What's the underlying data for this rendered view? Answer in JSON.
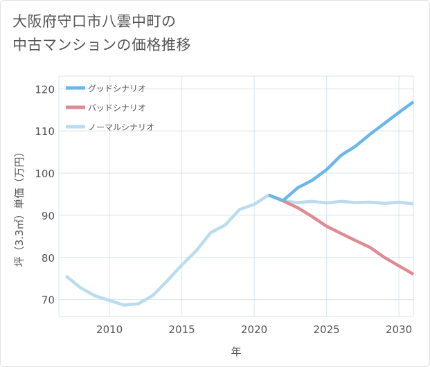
{
  "title_line1": "大阪府守口市八雲中町の",
  "title_line2": "中古マンションの価格推移",
  "chart_data": {
    "type": "line",
    "title": "大阪府守口市八雲中町の中古マンションの価格推移",
    "xlabel": "年",
    "ylabel": "坪（3.3㎡）単価（万円）",
    "xlim": [
      2006.5,
      2031
    ],
    "ylim": [
      66,
      123
    ],
    "xticks": [
      2010,
      2015,
      2020,
      2025,
      2030
    ],
    "yticks": [
      70,
      80,
      90,
      100,
      110,
      120
    ],
    "grid": true,
    "legend_position": "top-left",
    "series": [
      {
        "name": "グッドシナリオ",
        "color": "#6bb6ea",
        "points": [
          [
            2021,
            94.8
          ],
          [
            2022,
            93.5
          ],
          [
            2023,
            96.5
          ],
          [
            2024,
            98.3
          ],
          [
            2025,
            100.8
          ],
          [
            2026,
            104.2
          ],
          [
            2027,
            106.4
          ],
          [
            2028,
            109.2
          ],
          [
            2029,
            111.8
          ],
          [
            2030,
            114.4
          ],
          [
            2031,
            116.9
          ]
        ]
      },
      {
        "name": "バッドシナリオ",
        "color": "#e08a93",
        "points": [
          [
            2021,
            94.8
          ],
          [
            2022,
            93.4
          ],
          [
            2023,
            91.8
          ],
          [
            2024,
            89.7
          ],
          [
            2025,
            87.4
          ],
          [
            2026,
            85.7
          ],
          [
            2027,
            84.0
          ],
          [
            2028,
            82.4
          ],
          [
            2029,
            80.0
          ],
          [
            2030,
            78.0
          ],
          [
            2031,
            76.0
          ]
        ]
      },
      {
        "name": "ノーマルシナリオ",
        "color": "#b9dcee",
        "points": [
          [
            2007,
            75.6
          ],
          [
            2008,
            72.8
          ],
          [
            2009,
            70.9
          ],
          [
            2010,
            69.8
          ],
          [
            2011,
            68.7
          ],
          [
            2012,
            69.0
          ],
          [
            2013,
            71.0
          ],
          [
            2014,
            74.5
          ],
          [
            2015,
            78.2
          ],
          [
            2016,
            81.6
          ],
          [
            2017,
            85.9
          ],
          [
            2018,
            87.7
          ],
          [
            2019,
            91.4
          ],
          [
            2020,
            92.6
          ],
          [
            2021,
            94.8
          ],
          [
            2022,
            93.4
          ],
          [
            2023,
            93.0
          ],
          [
            2024,
            93.3
          ],
          [
            2025,
            92.9
          ],
          [
            2026,
            93.3
          ],
          [
            2027,
            93.0
          ],
          [
            2028,
            93.1
          ],
          [
            2029,
            92.8
          ],
          [
            2030,
            93.1
          ],
          [
            2031,
            92.7
          ]
        ]
      }
    ]
  }
}
